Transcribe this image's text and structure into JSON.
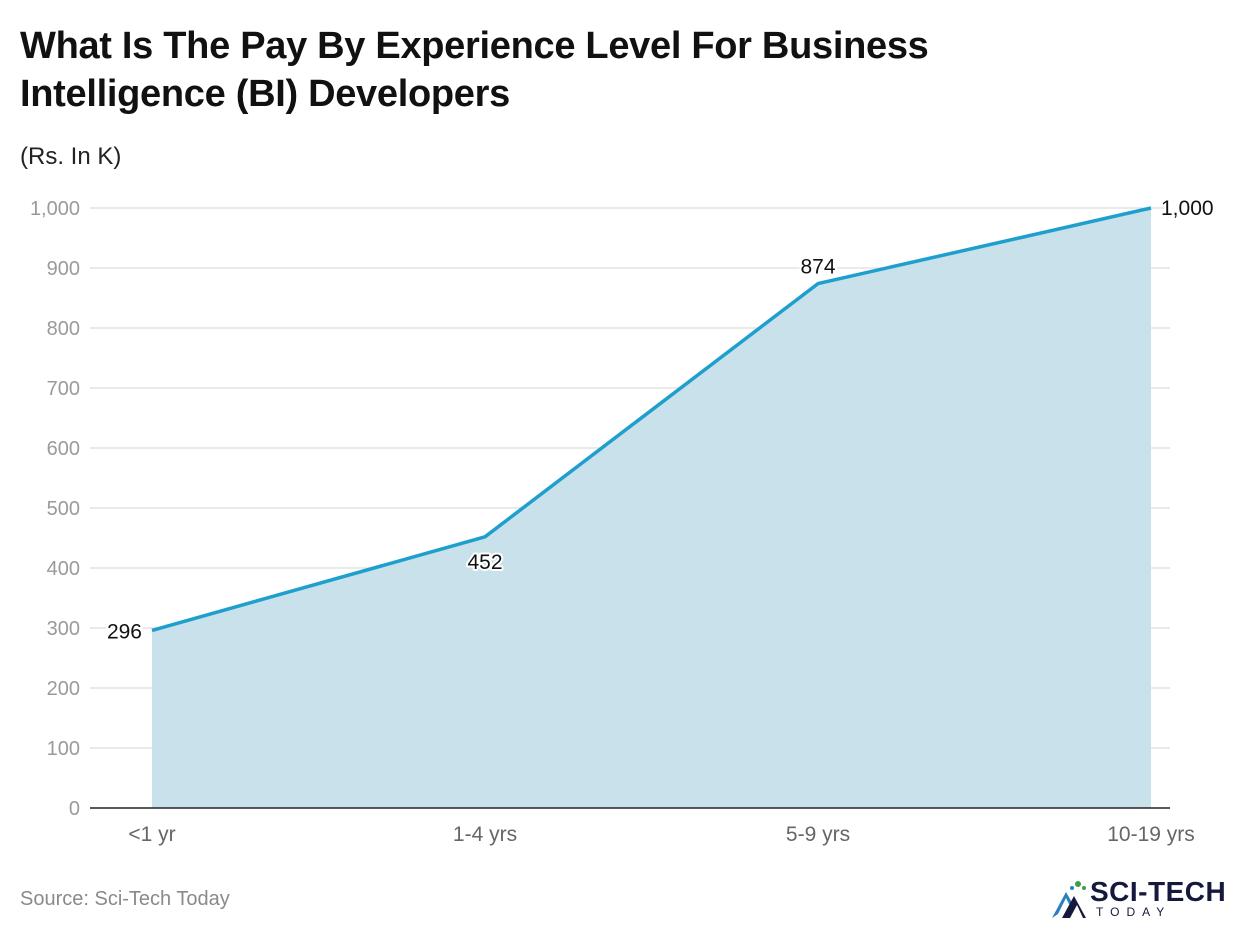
{
  "title": "What Is The Pay By Experience Level For Business Intelligence (BI) Developers",
  "unit_label": "(Rs. In K)",
  "source": "Source: Sci-Tech Today",
  "logo": {
    "name": "SCI-TECH",
    "sub": "TODAY"
  },
  "colors": {
    "line": "#1f9fce",
    "area": "#c8e1ea",
    "grid": "#e3e3e3",
    "axis": "#222222"
  },
  "chart_data": {
    "type": "area",
    "title": "What Is The Pay By Experience Level For Business Intelligence (BI) Developers",
    "ylabel": "(Rs. In K)",
    "xlabel": "",
    "categories": [
      "<1 yr",
      "1-4 yrs",
      "5-9 yrs",
      "10-19 yrs"
    ],
    "values": [
      296,
      452,
      874,
      1000
    ],
    "data_labels": [
      "296",
      "452",
      "874",
      "1,000"
    ],
    "ylim": [
      0,
      1000
    ],
    "yticks": [
      0,
      100,
      200,
      300,
      400,
      500,
      600,
      700,
      800,
      900,
      1000
    ],
    "ytick_labels": [
      "0",
      "100",
      "200",
      "300",
      "400",
      "500",
      "600",
      "700",
      "800",
      "900",
      "1,000"
    ],
    "grid": true,
    "legend": "none"
  }
}
